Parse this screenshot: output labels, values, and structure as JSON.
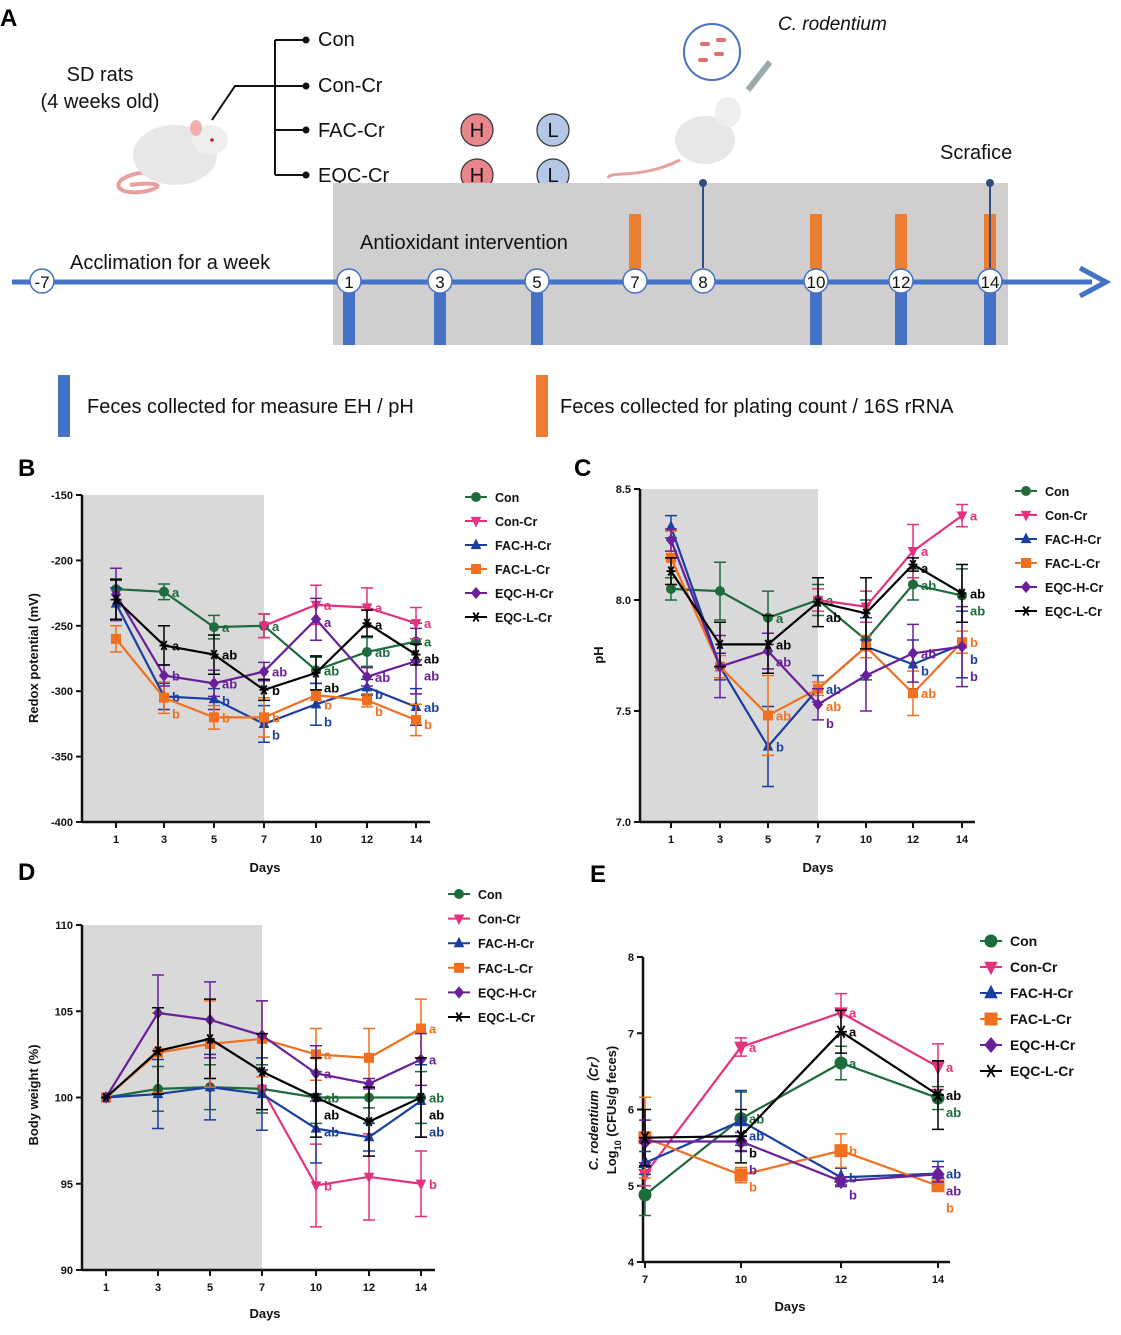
{
  "panel_labels": {
    "a": "A",
    "b": "B",
    "c": "C",
    "d": "D",
    "e": "E"
  },
  "design": {
    "subjects_line1": "SD rats",
    "subjects_line2": "(4 weeks old)",
    "groups": [
      "Con",
      "Con-Cr",
      "FAC-Cr",
      "EQC-Cr"
    ],
    "dose_high": "H",
    "dose_low": "L",
    "pathogen": "C. rodentium",
    "sacrifice": "Scrafice",
    "acclimation": "Acclimation for a week",
    "intervention": "Antioxidant intervention",
    "timeline_days": [
      "-7",
      "1",
      "3",
      "5",
      "7",
      "8",
      "10",
      "12",
      "14"
    ],
    "legend_blue": "Feces collected for measure EH / pH",
    "legend_orange": "Feces collected for plating count / 16S rRNA",
    "colors": {
      "timeline": "#4472c4",
      "collect_blue": "#4472c4",
      "collect_orange": "#ed7d31",
      "intervention_bg": "#d0cece",
      "high": "#e8868c",
      "low": "#b4c7e7"
    }
  },
  "series_style": {
    "Con": {
      "color": "#1e6b3c",
      "marker": "circle"
    },
    "Con-Cr": {
      "color": "#e5317e",
      "marker": "triangle-down"
    },
    "FAC-H-Cr": {
      "color": "#1a3fa0",
      "marker": "triangle-up"
    },
    "FAC-L-Cr": {
      "color": "#f07020",
      "marker": "square"
    },
    "EQC-H-Cr": {
      "color": "#6a1f9a",
      "marker": "diamond"
    },
    "EQC-L-Cr": {
      "color": "#000000",
      "marker": "star"
    }
  },
  "chart_data": [
    {
      "id": "B",
      "type": "line",
      "xlabel": "Days",
      "ylabel": "Redox potential (mV)",
      "categories": [
        "1",
        "3",
        "5",
        "7",
        "10",
        "12",
        "14"
      ],
      "ylim": [
        -400,
        -150
      ],
      "yticks": [
        "-150",
        "-200",
        "-250",
        "-300",
        "-350",
        "-400"
      ],
      "shaded_until": "7",
      "legend": "right",
      "grid": false,
      "series": [
        {
          "name": "Con",
          "values": [
            -222,
            -224,
            -251,
            -250,
            -284,
            -270,
            -262
          ],
          "error": [
            8,
            6,
            9,
            9,
            10,
            11,
            14
          ],
          "letters": [
            null,
            "a",
            "a",
            "a",
            "ab",
            "ab",
            "a"
          ]
        },
        {
          "name": "Con-Cr",
          "values": [
            null,
            null,
            null,
            -250,
            -234,
            -236,
            -248
          ],
          "error": [
            null,
            null,
            null,
            9,
            15,
            15,
            12
          ],
          "letters": [
            null,
            null,
            null,
            null,
            "a",
            "a",
            "a"
          ]
        },
        {
          "name": "FAC-H-Cr",
          "values": [
            -233,
            -304,
            -306,
            -325,
            -310,
            -297,
            -312
          ],
          "error": [
            12,
            10,
            8,
            14,
            16,
            6,
            14
          ],
          "letters": [
            null,
            "b",
            "b",
            "b",
            "b",
            "b",
            "ab"
          ]
        },
        {
          "name": "FAC-L-Cr",
          "values": [
            -260,
            -305,
            -320,
            -320,
            -303,
            -307,
            -322
          ],
          "error": [
            10,
            12,
            9,
            15,
            4,
            5,
            12
          ],
          "letters": [
            null,
            "b",
            "b",
            "b",
            "b",
            "b",
            "b"
          ]
        },
        {
          "name": "EQC-H-Cr",
          "values": [
            -226,
            -288,
            -294,
            -285,
            -245,
            -289,
            -277
          ],
          "error": [
            20,
            8,
            10,
            7,
            16,
            7,
            25
          ],
          "letters": [
            null,
            "b",
            "ab",
            "ab",
            "a",
            "ab",
            "ab"
          ]
        },
        {
          "name": "EQC-L-Cr",
          "values": [
            -230,
            -265,
            -272,
            -299,
            -286,
            -248,
            -272
          ],
          "error": [
            15,
            15,
            15,
            8,
            13,
            10,
            8
          ],
          "letters": [
            null,
            "a",
            "ab",
            "b",
            "ab",
            "a",
            "ab"
          ]
        }
      ]
    },
    {
      "id": "C",
      "type": "line",
      "xlabel": "Days",
      "ylabel": "pH",
      "categories": [
        "1",
        "3",
        "5",
        "7",
        "10",
        "12",
        "14"
      ],
      "ylim": [
        7.0,
        8.5
      ],
      "yticks": [
        "7.0",
        "7.5",
        "8.0",
        "8.5"
      ],
      "shaded_until": "7",
      "legend": "right",
      "grid": false,
      "series": [
        {
          "name": "Con",
          "values": [
            8.05,
            8.04,
            7.92,
            8.0,
            7.82,
            8.07,
            8.02
          ],
          "error": [
            0.05,
            0.13,
            0.12,
            0.07,
            0.18,
            0.07,
            0.12
          ],
          "letters": [
            null,
            null,
            "a",
            "a",
            null,
            "ab",
            "ab"
          ]
        },
        {
          "name": "Con-Cr",
          "values": [
            null,
            null,
            null,
            8.0,
            7.97,
            8.22,
            8.38
          ],
          "error": [
            null,
            null,
            null,
            0.05,
            0.07,
            0.12,
            0.05
          ],
          "letters": [
            null,
            null,
            null,
            null,
            null,
            "a",
            "a"
          ]
        },
        {
          "name": "FAC-H-Cr",
          "values": [
            8.33,
            7.7,
            7.34,
            7.6,
            7.79,
            7.71,
            7.8
          ],
          "error": [
            0.05,
            0.06,
            0.18,
            0.06,
            0.13,
            0.11,
            0.15
          ],
          "letters": [
            null,
            null,
            "b",
            "ab",
            null,
            "b",
            "b"
          ]
        },
        {
          "name": "FAC-L-Cr",
          "values": [
            8.19,
            7.7,
            7.48,
            7.6,
            7.79,
            7.58,
            7.81
          ],
          "error": [
            0.12,
            0.05,
            0.18,
            0.03,
            0.05,
            0.1,
            0.05
          ],
          "letters": [
            null,
            null,
            "ab",
            "ab",
            null,
            "ab",
            "b"
          ]
        },
        {
          "name": "EQC-H-Cr",
          "values": [
            8.27,
            7.7,
            7.77,
            7.53,
            7.66,
            7.76,
            7.79
          ],
          "error": [
            0.05,
            0.14,
            0.08,
            0.07,
            0.16,
            0.13,
            0.18
          ],
          "letters": [
            null,
            null,
            "ab",
            "b",
            null,
            "ab",
            "b"
          ]
        },
        {
          "name": "EQC-L-Cr",
          "values": [
            8.13,
            7.8,
            7.8,
            7.99,
            7.94,
            8.16,
            8.03
          ],
          "error": [
            0.06,
            0.1,
            0.13,
            0.11,
            0.16,
            0.03,
            0.13
          ],
          "letters": [
            null,
            null,
            "ab",
            "ab",
            null,
            "a",
            "ab"
          ]
        }
      ]
    },
    {
      "id": "D",
      "type": "line",
      "xlabel": "Days",
      "ylabel": "Body weight (%)",
      "categories": [
        "1",
        "3",
        "5",
        "7",
        "10",
        "12",
        "14"
      ],
      "ylim": [
        90,
        110
      ],
      "yticks": [
        "90",
        "95",
        "100",
        "105",
        "110"
      ],
      "shaded_until": "7",
      "legend": "right",
      "grid": false,
      "series": [
        {
          "name": "Con",
          "values": [
            100,
            100.5,
            100.6,
            100.5,
            100.0,
            100.0,
            100.0
          ],
          "error": [
            0,
            1.3,
            1.3,
            1.4,
            1.5,
            0.6,
            1.5
          ],
          "letters": [
            null,
            null,
            null,
            null,
            "ab",
            null,
            "ab"
          ]
        },
        {
          "name": "Con-Cr",
          "values": [
            null,
            null,
            null,
            100.5,
            94.9,
            95.4,
            95.0
          ],
          "error": [
            null,
            null,
            null,
            0,
            2.4,
            2.5,
            1.9
          ],
          "letters": [
            null,
            null,
            null,
            null,
            "b",
            null,
            "b"
          ]
        },
        {
          "name": "FAC-H-Cr",
          "values": [
            100,
            100.2,
            100.6,
            100.2,
            98.2,
            97.7,
            99.8
          ],
          "error": [
            0,
            2.0,
            1.9,
            2.1,
            2.0,
            0.8,
            2.1
          ],
          "letters": [
            null,
            null,
            null,
            null,
            "ab",
            null,
            "ab"
          ]
        },
        {
          "name": "FAC-L-Cr",
          "values": [
            100,
            102.6,
            103.1,
            103.4,
            102.5,
            102.3,
            104.0
          ],
          "error": [
            0,
            2.3,
            2.5,
            2.2,
            1.5,
            1.7,
            1.7
          ],
          "letters": [
            null,
            null,
            null,
            null,
            "a",
            null,
            "a"
          ]
        },
        {
          "name": "EQC-H-Cr",
          "values": [
            100,
            104.9,
            104.5,
            103.6,
            101.4,
            100.8,
            102.2
          ],
          "error": [
            0,
            2.2,
            2.2,
            2.0,
            1.6,
            0.3,
            1.5
          ],
          "letters": [
            null,
            null,
            null,
            null,
            "a",
            null,
            "a"
          ]
        },
        {
          "name": "EQC-L-Cr",
          "values": [
            100,
            102.7,
            103.4,
            101.5,
            100.0,
            98.6,
            100.0
          ],
          "error": [
            0,
            2.5,
            2.3,
            2.2,
            2.3,
            2.0,
            2.3
          ],
          "letters": [
            null,
            null,
            null,
            null,
            "ab",
            null,
            "ab"
          ]
        }
      ]
    },
    {
      "id": "E",
      "type": "line",
      "xlabel": "Days",
      "ylabel_line1": "C. rodentium（Cr）",
      "ylabel_log": "Log",
      "ylabel_sub": "10",
      "ylabel_rest": " (CFUs/g feces)",
      "categories": [
        "7",
        "10",
        "12",
        "14"
      ],
      "ylim": [
        4,
        8
      ],
      "yticks": [
        "4",
        "5",
        "6",
        "7",
        "8"
      ],
      "legend": "right",
      "grid": false,
      "series": [
        {
          "name": "Con",
          "values": [
            4.88,
            5.88,
            6.61,
            6.15
          ],
          "error": [
            0.27,
            0.35,
            0.22,
            0.15
          ],
          "letters": [
            null,
            "ab",
            "a",
            "ab"
          ]
        },
        {
          "name": "Con-Cr",
          "values": [
            5.15,
            6.82,
            7.27,
            6.56
          ],
          "error": [
            0.15,
            0.12,
            0.25,
            0.3
          ],
          "letters": [
            null,
            "a",
            "a",
            "a"
          ]
        },
        {
          "name": "FAC-H-Cr",
          "values": [
            5.3,
            5.85,
            5.11,
            5.16
          ],
          "error": [
            0.15,
            0.4,
            0.12,
            0.16
          ],
          "letters": [
            null,
            "ab",
            "b",
            "ab"
          ]
        },
        {
          "name": "FAC-L-Cr",
          "values": [
            5.63,
            5.14,
            5.46,
            5.0
          ],
          "error": [
            0.53,
            0.1,
            0.22,
            0.05
          ],
          "letters": [
            null,
            "b",
            "b",
            "b"
          ]
        },
        {
          "name": "EQC-H-Cr",
          "values": [
            5.58,
            5.58,
            5.06,
            5.15
          ],
          "error": [
            0.28,
            0.12,
            0.05,
            0.1
          ],
          "letters": [
            null,
            "b",
            "b",
            "ab"
          ]
        },
        {
          "name": "EQC-L-Cr",
          "values": [
            5.63,
            5.65,
            7.02,
            6.19
          ],
          "error": [
            0.37,
            0.35,
            0.28,
            0.45
          ],
          "letters": [
            null,
            "b",
            "a",
            "ab"
          ]
        }
      ]
    }
  ]
}
